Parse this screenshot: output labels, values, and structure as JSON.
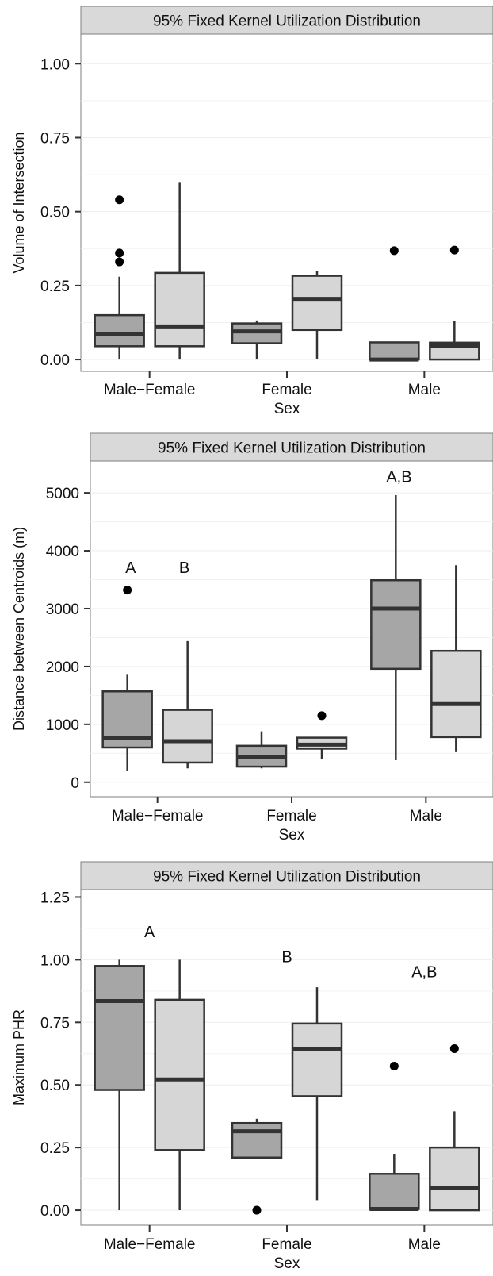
{
  "chart_data": [
    {
      "type": "box",
      "title": "95% Fixed Kernel Utilization Distribution",
      "xlabel": "Sex",
      "ylabel": "Volume of Intersection",
      "ylim": [
        -0.04,
        1.1
      ],
      "yticks": [
        0,
        0.25,
        0.5,
        0.75,
        1
      ],
      "ytick_labels": [
        "0.00",
        "0.25",
        "0.50",
        "0.75",
        "1.00"
      ],
      "categories": [
        "Male−Female",
        "Female",
        "Male"
      ],
      "colors": {
        "dark": "#a6a6a6",
        "light": "#d6d6d6"
      },
      "grid": true,
      "boxes": [
        {
          "group": 0,
          "shade": "dark",
          "min": 0.0,
          "q1": 0.045,
          "median": 0.085,
          "q3": 0.15,
          "max": 0.28,
          "outliers": [
            0.54,
            0.36,
            0.33
          ]
        },
        {
          "group": 0,
          "shade": "light",
          "min": 0.0,
          "q1": 0.045,
          "median": 0.112,
          "q3": 0.293,
          "max": 0.6,
          "outliers": []
        },
        {
          "group": 1,
          "shade": "dark",
          "min": 0.0,
          "q1": 0.055,
          "median": 0.095,
          "q3": 0.122,
          "max": 0.132,
          "outliers": []
        },
        {
          "group": 1,
          "shade": "light",
          "min": 0.003,
          "q1": 0.1,
          "median": 0.205,
          "q3": 0.283,
          "max": 0.3,
          "outliers": []
        },
        {
          "group": 2,
          "shade": "dark",
          "min": 0.0,
          "q1": 0.0,
          "median": 0.0,
          "q3": 0.058,
          "max": 0.058,
          "outliers": [
            0.368
          ]
        },
        {
          "group": 2,
          "shade": "light",
          "min": 0.0,
          "q1": 0.0,
          "median": 0.045,
          "q3": 0.057,
          "max": 0.13,
          "outliers": [
            0.37
          ]
        }
      ],
      "annotations": []
    },
    {
      "type": "box",
      "title": "95% Fixed Kernel Utilization Distribution",
      "xlabel": "Sex",
      "ylabel": "Distance between Centroids (m)",
      "ylim": [
        -250,
        5550
      ],
      "yticks": [
        0,
        1000,
        2000,
        3000,
        4000,
        5000
      ],
      "ytick_labels": [
        "0",
        "1000",
        "2000",
        "3000",
        "4000",
        "5000"
      ],
      "categories": [
        "Male−Female",
        "Female",
        "Male"
      ],
      "colors": {
        "dark": "#a6a6a6",
        "light": "#d6d6d6"
      },
      "grid": true,
      "boxes": [
        {
          "group": 0,
          "shade": "dark",
          "min": 200,
          "q1": 600,
          "median": 770,
          "q3": 1570,
          "max": 1870,
          "outliers": [
            3320
          ]
        },
        {
          "group": 0,
          "shade": "light",
          "min": 240,
          "q1": 340,
          "median": 710,
          "q3": 1250,
          "max": 2440,
          "outliers": []
        },
        {
          "group": 1,
          "shade": "dark",
          "min": 240,
          "q1": 270,
          "median": 430,
          "q3": 630,
          "max": 880,
          "outliers": []
        },
        {
          "group": 1,
          "shade": "light",
          "min": 400,
          "q1": 580,
          "median": 650,
          "q3": 770,
          "max": 770,
          "outliers": [
            1150
          ]
        },
        {
          "group": 2,
          "shade": "dark",
          "min": 380,
          "q1": 1960,
          "median": 3000,
          "q3": 3490,
          "max": 4960,
          "outliers": []
        },
        {
          "group": 2,
          "shade": "light",
          "min": 520,
          "q1": 780,
          "median": 1350,
          "q3": 2270,
          "max": 3750,
          "outliers": []
        }
      ],
      "annotations": [
        {
          "text": "A",
          "x": 0,
          "offset": -0.2,
          "y": 3620
        },
        {
          "text": "B",
          "x": 0,
          "offset": 0.2,
          "y": 3620
        },
        {
          "text": "A,B",
          "x": 2,
          "offset": -0.2,
          "y": 5190
        }
      ]
    },
    {
      "type": "box",
      "title": "95% Fixed Kernel Utilization Distribution",
      "xlabel": "Sex",
      "ylabel": "Maximum PHR",
      "ylim": [
        -0.06,
        1.28
      ],
      "yticks": [
        0,
        0.25,
        0.5,
        0.75,
        1,
        1.25
      ],
      "ytick_labels": [
        "0.00",
        "0.25",
        "0.50",
        "0.75",
        "1.00",
        "1.25"
      ],
      "categories": [
        "Male−Female",
        "Female",
        "Male"
      ],
      "colors": {
        "dark": "#a6a6a6",
        "light": "#d6d6d6"
      },
      "grid": true,
      "boxes": [
        {
          "group": 0,
          "shade": "dark",
          "min": 0.0,
          "q1": 0.48,
          "median": 0.835,
          "q3": 0.975,
          "max": 1.0,
          "outliers": []
        },
        {
          "group": 0,
          "shade": "light",
          "min": 0.0,
          "q1": 0.24,
          "median": 0.522,
          "q3": 0.84,
          "max": 1.0,
          "outliers": []
        },
        {
          "group": 1,
          "shade": "dark",
          "min": 0.21,
          "q1": 0.21,
          "median": 0.315,
          "q3": 0.348,
          "max": 0.365,
          "outliers": [
            0.0
          ]
        },
        {
          "group": 1,
          "shade": "light",
          "min": 0.04,
          "q1": 0.455,
          "median": 0.645,
          "q3": 0.745,
          "max": 0.89,
          "outliers": []
        },
        {
          "group": 2,
          "shade": "dark",
          "min": 0.0,
          "q1": 0.005,
          "median": 0.005,
          "q3": 0.145,
          "max": 0.225,
          "outliers": [
            0.575
          ]
        },
        {
          "group": 2,
          "shade": "light",
          "min": 0.0,
          "q1": 0.0,
          "median": 0.09,
          "q3": 0.25,
          "max": 0.395,
          "outliers": [
            0.645
          ]
        }
      ],
      "annotations": [
        {
          "text": "A",
          "x": 0,
          "offset": 0,
          "y": 1.09
        },
        {
          "text": "B",
          "x": 1,
          "offset": 0,
          "y": 0.99
        },
        {
          "text": "A,B",
          "x": 2,
          "offset": 0,
          "y": 0.93
        }
      ]
    }
  ]
}
